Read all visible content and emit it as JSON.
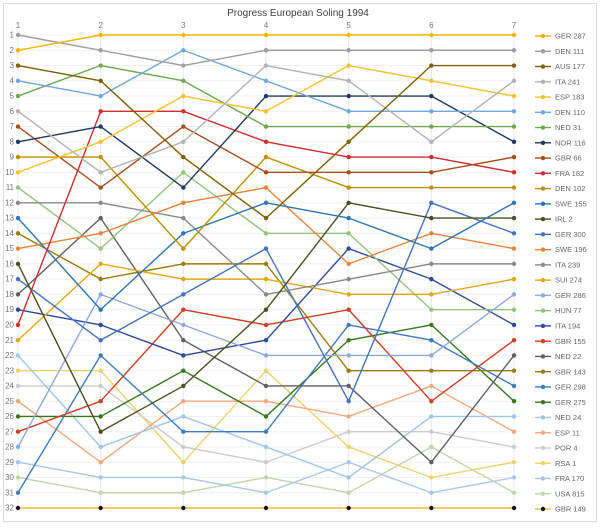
{
  "title": "Progress European Soling 1994",
  "frame_color": "#dadada",
  "grid": {
    "h_color": "#f0f0f0",
    "v_color": "#e8e8e8"
  },
  "axis": {
    "tick_color": "#757575"
  },
  "chart_data": {
    "type": "line",
    "title": "Progress European Soling 1994",
    "xlabel": "",
    "ylabel": "",
    "x_ticks": [
      "1",
      "2",
      "3",
      "4",
      "5",
      "6",
      "7"
    ],
    "y_ticks": [
      "1",
      "2",
      "3",
      "4",
      "5",
      "6",
      "7",
      "8",
      "9",
      "10",
      "11",
      "12",
      "13",
      "14",
      "15",
      "16",
      "17",
      "18",
      "19",
      "20",
      "21",
      "22",
      "23",
      "24",
      "25",
      "26",
      "27",
      "28",
      "29",
      "30",
      "31",
      "32"
    ],
    "y_inverted": true,
    "ylim": [
      1,
      32
    ],
    "xlim": [
      1,
      7
    ],
    "grid": true,
    "legend_position": "right",
    "series": [
      {
        "name": "GER 287",
        "color": "#f4b400",
        "positions": [
          2,
          1,
          1,
          1,
          1,
          1,
          1
        ]
      },
      {
        "name": "DEN 111",
        "color": "#9e9e9e",
        "positions": [
          1,
          2,
          3,
          2,
          2,
          2,
          2
        ]
      },
      {
        "name": "AUS 177",
        "color": "#7f6000",
        "positions": [
          3,
          4,
          9,
          13,
          8,
          3,
          3
        ]
      },
      {
        "name": "ITA 241",
        "color": "#b3b3b3",
        "positions": [
          6,
          10,
          8,
          3,
          4,
          8,
          4
        ]
      },
      {
        "name": "ESP 183",
        "color": "#f1c232",
        "positions": [
          10,
          8,
          5,
          6,
          3,
          4,
          5
        ]
      },
      {
        "name": "DEN 110",
        "color": "#6fa8dc",
        "positions": [
          4,
          5,
          2,
          4,
          6,
          6,
          6
        ]
      },
      {
        "name": "NED 31",
        "color": "#6fa84f",
        "positions": [
          5,
          3,
          4,
          7,
          7,
          7,
          7
        ]
      },
      {
        "name": "NOR 116",
        "color": "#203864",
        "positions": [
          8,
          7,
          11,
          5,
          5,
          5,
          8
        ]
      },
      {
        "name": "GBR 66",
        "color": "#a84f1f",
        "positions": [
          7,
          11,
          7,
          10,
          10,
          10,
          9
        ]
      },
      {
        "name": "FRA 182",
        "color": "#d22d2d",
        "positions": [
          20,
          6,
          6,
          8,
          9,
          9,
          10
        ]
      },
      {
        "name": "DEN 102",
        "color": "#bf9000",
        "positions": [
          9,
          9,
          15,
          9,
          11,
          11,
          11
        ]
      },
      {
        "name": "SWE 155",
        "color": "#2e75b6",
        "positions": [
          13,
          19,
          14,
          12,
          13,
          15,
          12
        ]
      },
      {
        "name": "IRL 2",
        "color": "#49511f",
        "positions": [
          16,
          27,
          24,
          19,
          12,
          13,
          13
        ]
      },
      {
        "name": "GER 300",
        "color": "#4472c4",
        "positions": [
          17,
          21,
          18,
          15,
          25,
          12,
          14
        ]
      },
      {
        "name": "SWE 196",
        "color": "#e8833a",
        "positions": [
          15,
          14,
          12,
          11,
          16,
          14,
          15
        ]
      },
      {
        "name": "ITA 239",
        "color": "#8a8a8a",
        "positions": [
          12,
          12,
          13,
          18,
          17,
          16,
          16
        ]
      },
      {
        "name": "SUI 274",
        "color": "#e2a713",
        "positions": [
          21,
          16,
          17,
          17,
          18,
          18,
          17
        ]
      },
      {
        "name": "GER 286",
        "color": "#8eaadb",
        "positions": [
          28,
          18,
          20,
          22,
          22,
          22,
          18
        ]
      },
      {
        "name": "HUN 77",
        "color": "#93c47d",
        "positions": [
          11,
          15,
          10,
          14,
          14,
          19,
          19
        ]
      },
      {
        "name": "ITA 194",
        "color": "#30489c",
        "positions": [
          19,
          20,
          22,
          21,
          15,
          17,
          20
        ]
      },
      {
        "name": "GBR 155",
        "color": "#cc4125",
        "positions": [
          27,
          25,
          19,
          20,
          19,
          25,
          21
        ]
      },
      {
        "name": "NED 22",
        "color": "#606060",
        "positions": [
          18,
          13,
          21,
          24,
          24,
          29,
          22
        ]
      },
      {
        "name": "GBR 143",
        "color": "#9a7b0a",
        "positions": [
          14,
          17,
          16,
          16,
          23,
          23,
          23
        ]
      },
      {
        "name": "GER 298",
        "color": "#3f7cc0",
        "positions": [
          31,
          22,
          27,
          27,
          20,
          21,
          24
        ]
      },
      {
        "name": "GER 275",
        "color": "#38761d",
        "positions": [
          26,
          26,
          23,
          26,
          21,
          20,
          25
        ]
      },
      {
        "name": "NED 24",
        "color": "#9fc5e8",
        "positions": [
          22,
          28,
          26,
          28,
          30,
          26,
          26
        ]
      },
      {
        "name": "ESP 11",
        "color": "#f2a97c",
        "positions": [
          25,
          29,
          25,
          25,
          26,
          24,
          27
        ]
      },
      {
        "name": "POR 4",
        "color": "#cccccc",
        "positions": [
          24,
          24,
          28,
          29,
          27,
          27,
          28
        ]
      },
      {
        "name": "RSA 1",
        "color": "#ecd26f",
        "positions": [
          23,
          23,
          29,
          23,
          28,
          30,
          29
        ]
      },
      {
        "name": "FRA 170",
        "color": "#a8c7e8",
        "positions": [
          29,
          30,
          30,
          31,
          29,
          31,
          30
        ]
      },
      {
        "name": "USA 815",
        "color": "#c3d6a9",
        "positions": [
          30,
          31,
          31,
          30,
          31,
          28,
          31
        ]
      },
      {
        "name": "GBR 149",
        "color": "#e6c229",
        "marker_color": "#15152a",
        "positions": [
          32,
          32,
          32,
          32,
          32,
          32,
          32
        ]
      }
    ]
  }
}
